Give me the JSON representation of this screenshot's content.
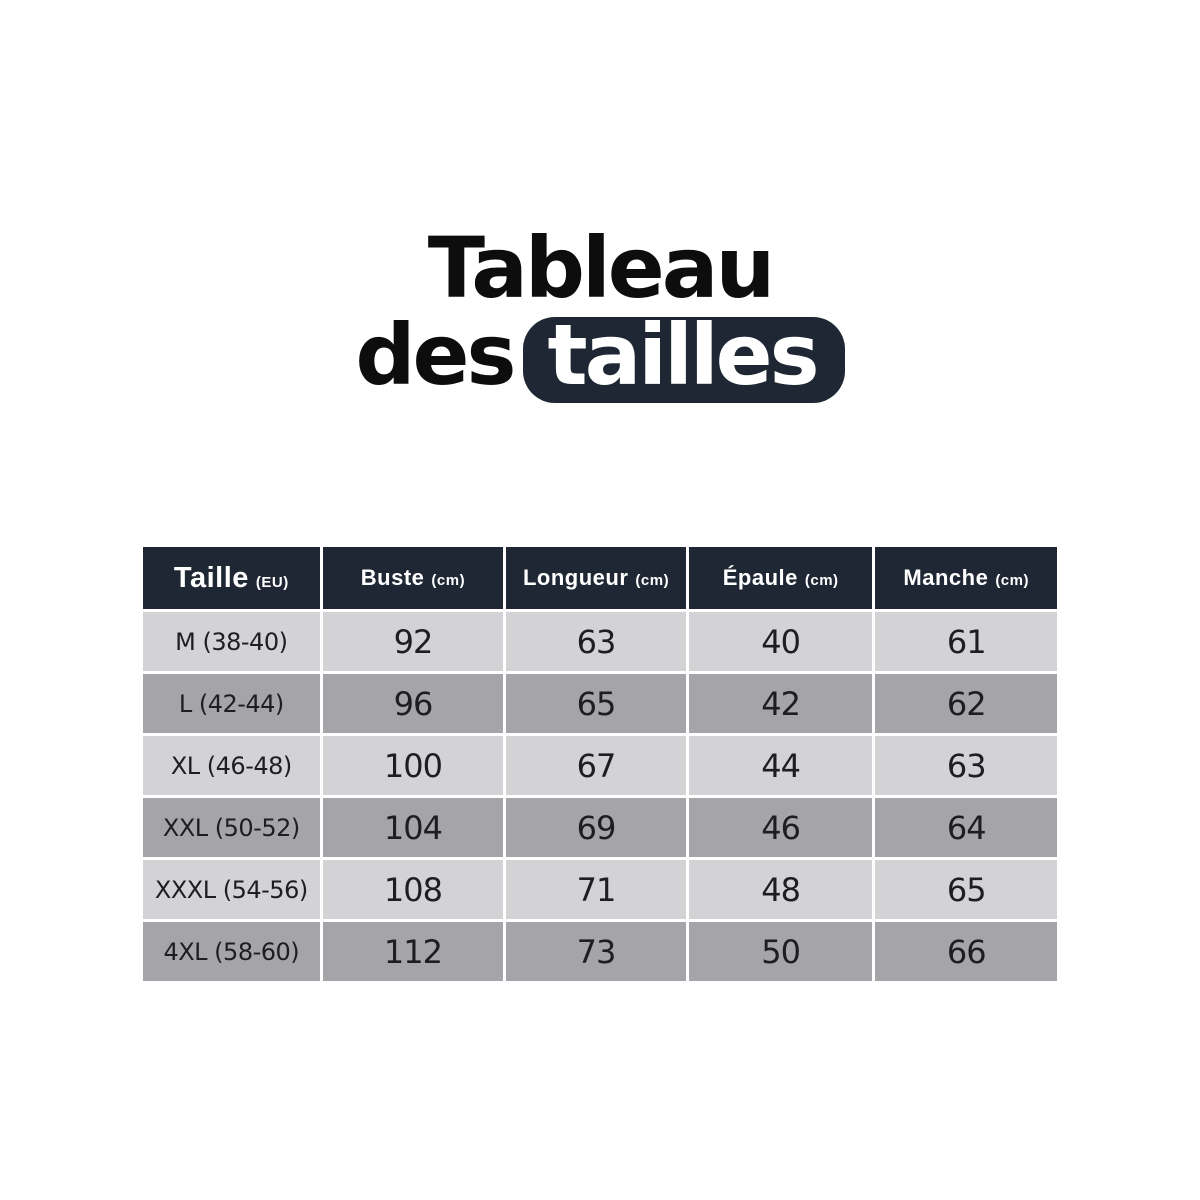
{
  "title": {
    "line1": "Tableau",
    "line2_prefix": "des",
    "line2_highlight": "tailles"
  },
  "colors": {
    "accent_dark_navy": "#1e2733",
    "row_light_gray": "#d3d3d5",
    "row_dark_gray": "#a5a5a9",
    "title_black": "#0d0d0d",
    "header_text": "#ffffff",
    "cell_text": "#1e1e20",
    "background": "#ffffff"
  },
  "table": {
    "headers": [
      {
        "label": "Taille",
        "unit": "(EU)"
      },
      {
        "label": "Buste",
        "unit": "(cm)"
      },
      {
        "label": "Longueur",
        "unit": "(cm)"
      },
      {
        "label": "Épaule",
        "unit": "(cm)"
      },
      {
        "label": "Manche",
        "unit": "(cm)"
      }
    ],
    "rows": [
      {
        "size": "M (38-40)",
        "buste": "92",
        "longueur": "63",
        "epaule": "40",
        "manche": "61"
      },
      {
        "size": "L (42-44)",
        "buste": "96",
        "longueur": "65",
        "epaule": "42",
        "manche": "62"
      },
      {
        "size": "XL (46-48)",
        "buste": "100",
        "longueur": "67",
        "epaule": "44",
        "manche": "63"
      },
      {
        "size": "XXL (50-52)",
        "buste": "104",
        "longueur": "69",
        "epaule": "46",
        "manche": "64"
      },
      {
        "size": "XXXL (54-56)",
        "buste": "108",
        "longueur": "71",
        "epaule": "48",
        "manche": "65"
      },
      {
        "size": "4XL (58-60)",
        "buste": "112",
        "longueur": "73",
        "epaule": "50",
        "manche": "66"
      }
    ]
  },
  "chart_data": {
    "type": "table",
    "title": "Tableau des tailles",
    "columns": [
      "Taille (EU)",
      "Buste (cm)",
      "Longueur (cm)",
      "Épaule (cm)",
      "Manche (cm)"
    ],
    "rows": [
      [
        "M (38-40)",
        92,
        63,
        40,
        61
      ],
      [
        "L (42-44)",
        96,
        65,
        42,
        62
      ],
      [
        "XL (46-48)",
        100,
        67,
        44,
        63
      ],
      [
        "XXL (50-52)",
        104,
        69,
        46,
        64
      ],
      [
        "XXXL (54-56)",
        108,
        71,
        48,
        65
      ],
      [
        "4XL (58-60)",
        112,
        73,
        50,
        66
      ]
    ],
    "layout": {
      "header_bg": "#1e2733",
      "alternating_rows": [
        "#d3d3d5",
        "#a5a5a9"
      ]
    }
  }
}
